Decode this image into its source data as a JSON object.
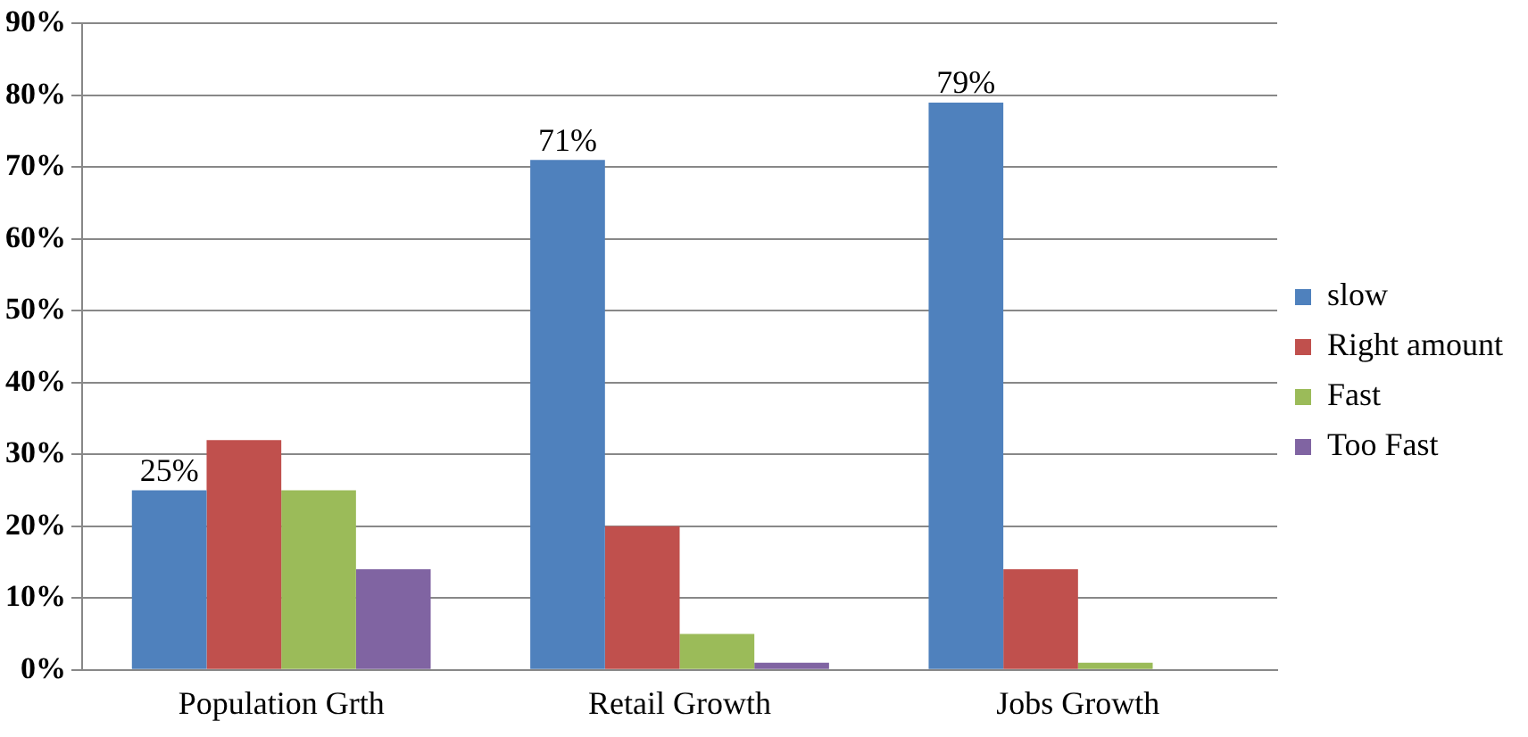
{
  "chart_data": {
    "type": "bar",
    "categories": [
      "Population Grth",
      "Retail Growth",
      "Jobs Growth"
    ],
    "series": [
      {
        "name": "slow",
        "color": "#4f81bd",
        "values": [
          25,
          71,
          79
        ],
        "value_labels": [
          "25%",
          "71%",
          "79%"
        ]
      },
      {
        "name": "Right amount",
        "color": "#c0504d",
        "values": [
          32,
          20,
          14
        ]
      },
      {
        "name": "Fast",
        "color": "#9bbb59",
        "values": [
          25,
          5,
          1
        ]
      },
      {
        "name": "Too Fast",
        "color": "#8064a2",
        "values": [
          14,
          1,
          0
        ]
      }
    ],
    "ylim": [
      0,
      90
    ],
    "yticks": [
      {
        "value": 0,
        "label": "0%"
      },
      {
        "value": 10,
        "label": "10%"
      },
      {
        "value": 20,
        "label": "20%"
      },
      {
        "value": 30,
        "label": "30%"
      },
      {
        "value": 40,
        "label": "40%"
      },
      {
        "value": 50,
        "label": "50%"
      },
      {
        "value": 60,
        "label": "60%"
      },
      {
        "value": 70,
        "label": "70%"
      },
      {
        "value": 80,
        "label": "80%"
      },
      {
        "value": 90,
        "label": "90%"
      }
    ],
    "grid": "y",
    "legend": "right"
  }
}
